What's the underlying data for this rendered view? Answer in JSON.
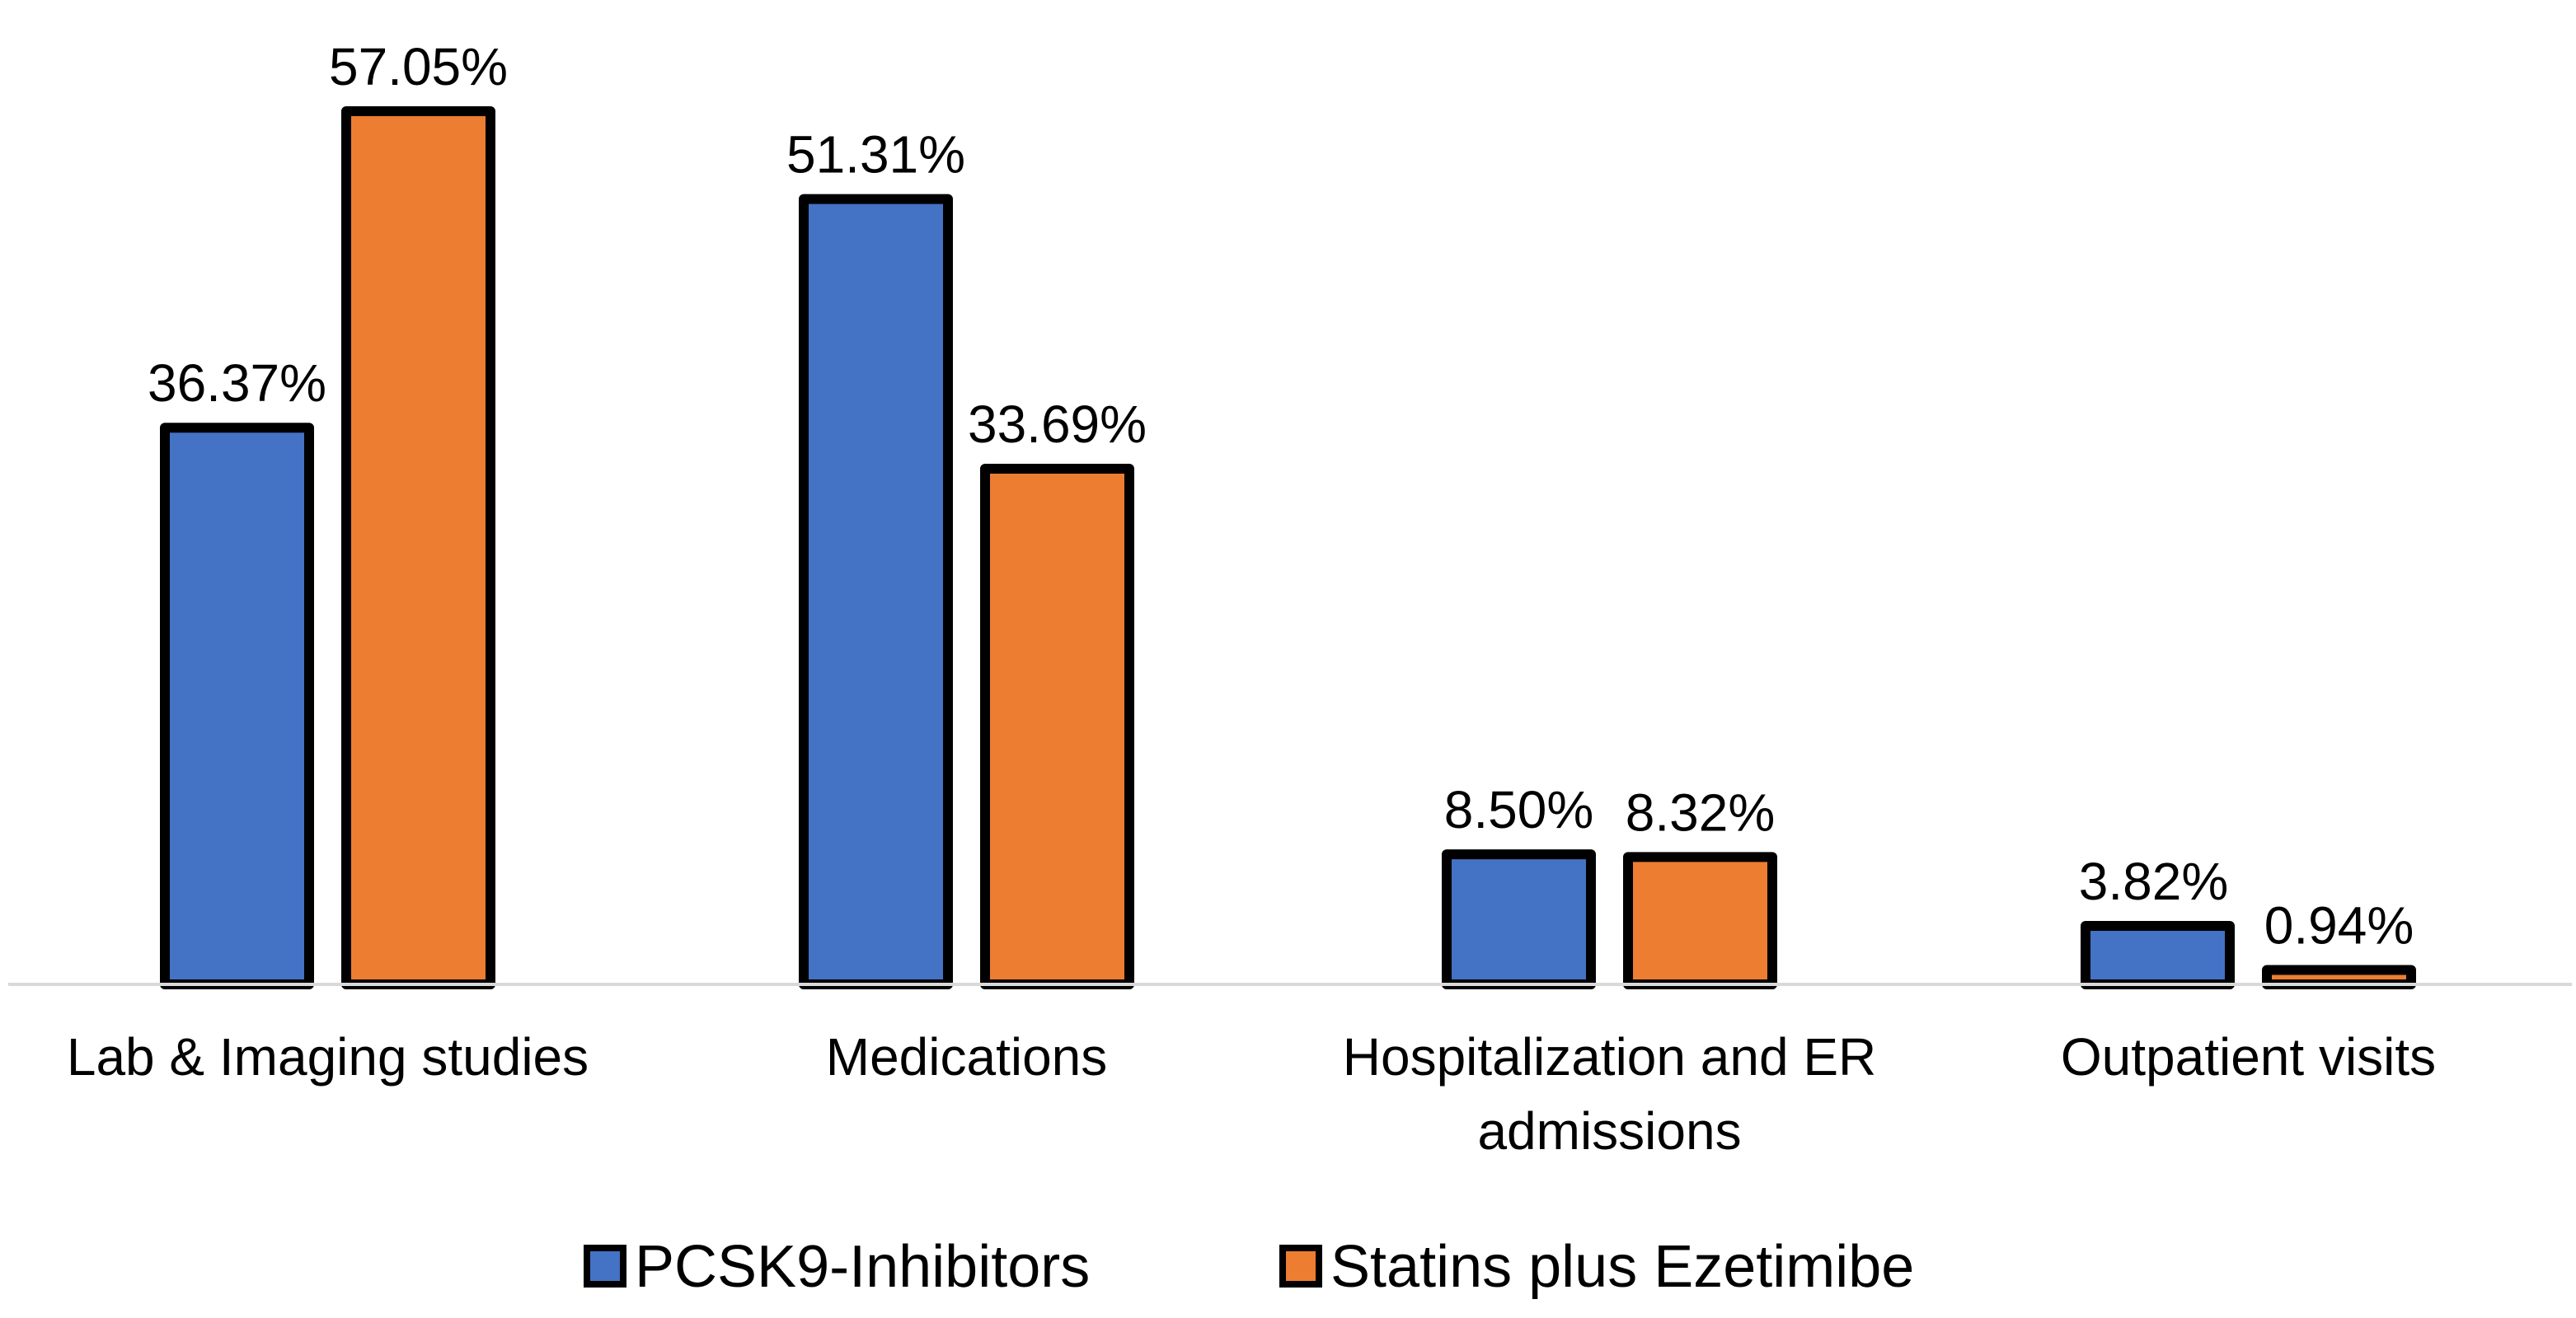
{
  "chart_data": {
    "type": "bar",
    "title": "",
    "xlabel": "",
    "ylabel": "",
    "ylim": [
      0,
      60
    ],
    "grid": false,
    "legend_position": "bottom",
    "categories": [
      "Lab & Imaging studies",
      "Medications",
      "Hospitalization and ER admissions",
      "Outpatient visits"
    ],
    "category_lines": [
      [
        "Lab & Imaging studies"
      ],
      [
        "Medications"
      ],
      [
        "Hospitalization and ER",
        "admissions"
      ],
      [
        "Outpatient visits"
      ]
    ],
    "series": [
      {
        "name": "PCSK9-Inhibitors",
        "color": "#4472c4",
        "values": [
          36.37,
          51.31,
          8.5,
          3.82
        ],
        "labels": [
          "36.37%",
          "51.31%",
          "8.50%",
          "3.82%"
        ]
      },
      {
        "name": "Statins plus Ezetimibe",
        "color": "#ed7d31",
        "values": [
          57.05,
          33.69,
          8.32,
          0.94
        ],
        "labels": [
          "57.05%",
          "33.69%",
          "8.32%",
          "0.94%"
        ]
      }
    ],
    "bar_outline_color": "#000000",
    "axis_color": "#d9d9d9"
  }
}
